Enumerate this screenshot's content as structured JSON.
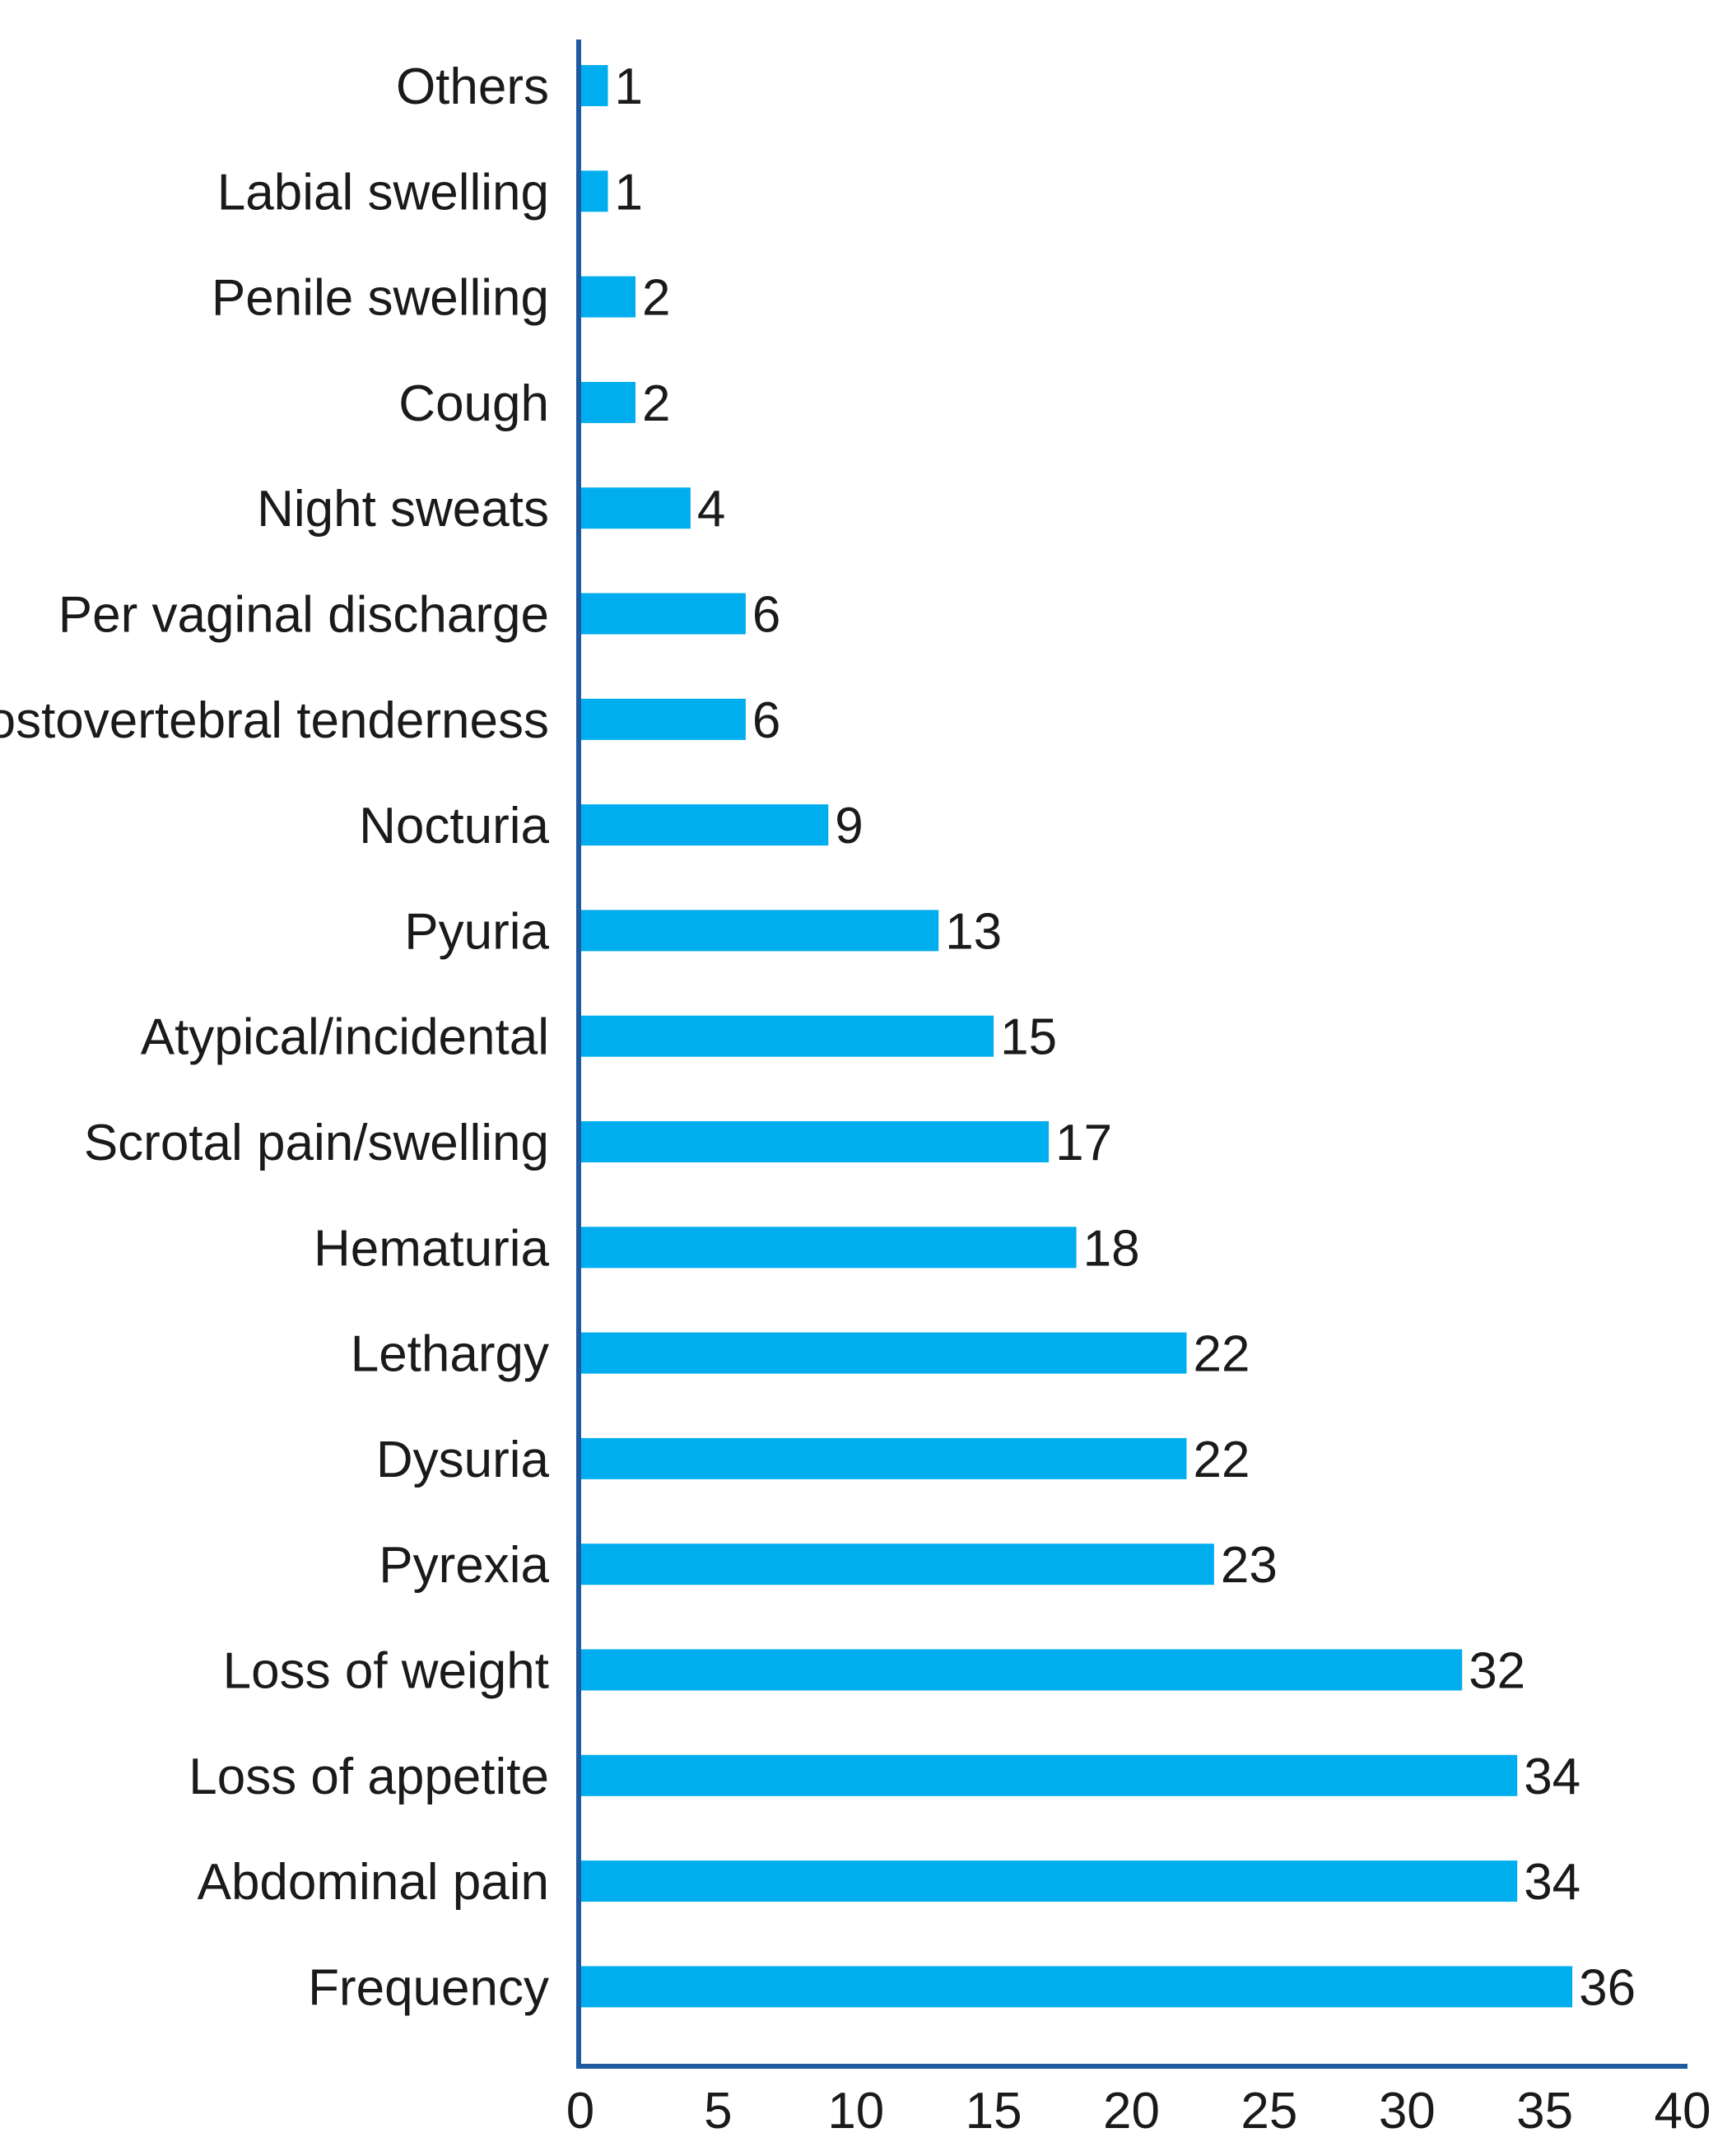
{
  "chart_data": {
    "type": "bar",
    "orientation": "horizontal",
    "title": "",
    "xlabel": "",
    "ylabel": "",
    "xlim": [
      0,
      40
    ],
    "x_ticks": [
      0,
      5,
      10,
      15,
      20,
      25,
      30,
      35,
      40
    ],
    "grid": false,
    "legend": "none",
    "categories": [
      "Others",
      "Labial swelling",
      "Penile swelling",
      "Cough",
      "Night sweats",
      "Per vaginal discharge",
      "Costovertebral tenderness",
      "Nocturia",
      "Pyuria",
      "Atypical/incidental",
      "Scrotal pain/swelling",
      "Hematuria",
      "Lethargy",
      "Dysuria",
      "Pyrexia",
      "Loss of weight",
      "Loss of appetite",
      "Abdominal pain",
      "Frequency"
    ],
    "values": [
      1,
      1,
      2,
      2,
      4,
      6,
      6,
      9,
      13,
      15,
      17,
      18,
      22,
      22,
      23,
      32,
      34,
      34,
      36
    ],
    "colors": {
      "bar": "#00adee",
      "axis": "#1f5aa0",
      "text": "#1a1a1a"
    }
  }
}
